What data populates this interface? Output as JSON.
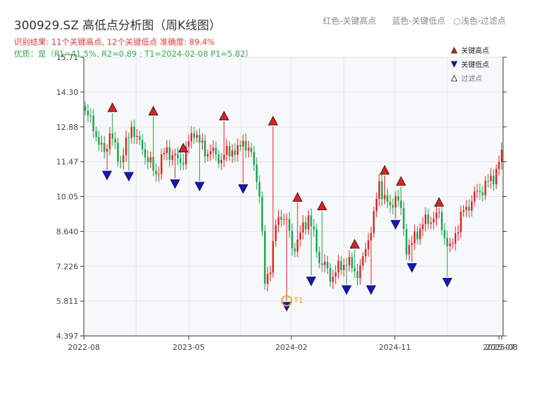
{
  "header": {
    "title": "300929.SZ 高低点分析图（周K线图）",
    "status_line": "识别结果: 11个关键高点, 12个关键低点  准确度: 89.4%",
    "quality_line": "优质：是（P1=41.5%, R2=0.89 ; T1=2024-02-08 P1=5.82）",
    "legend_top": [
      {
        "text": "红色-关键高点",
        "color": "#8a8a8a"
      },
      {
        "text": "蓝色-关键低点",
        "color": "#8a8a8a"
      },
      {
        "text": "○浅色-过滤点",
        "color": "#8a8a8a"
      }
    ]
  },
  "colors": {
    "up": "#e02020",
    "down": "#16a34a",
    "high_marker": "#e02020",
    "low_marker": "#1414d2",
    "t1_ring": "#f0a030",
    "plot_bg": "#f7f8fa",
    "grid": "#e1e4ea"
  },
  "chart_data": {
    "type": "candlestick",
    "title": "300929.SZ 高低点分析图（周K线图）",
    "x_ticks": [
      "2022-08",
      "2023-05",
      "2024-02",
      "2024-11",
      "2025-07",
      "2025-08"
    ],
    "y_ticks": [
      "4.397",
      "5.811",
      "7.226",
      "8.640",
      "10.05",
      "11.47",
      "12.88",
      "14.30",
      "15.71"
    ],
    "ylim": [
      4.397,
      15.71
    ],
    "x_range": [
      "2022-08",
      "2025-08"
    ],
    "grid": true,
    "legend_position": "top-right",
    "legend": [
      {
        "label": "关键高点",
        "marker": "triangle-up",
        "color": "#e02020"
      },
      {
        "label": "关键低点",
        "marker": "triangle-down",
        "color": "#1414d2"
      },
      {
        "label": "过滤点",
        "marker": "triangle-up-outline",
        "color": "#333333"
      }
    ],
    "anchors": [
      [
        0,
        13.4
      ],
      [
        3,
        13.0
      ],
      [
        5,
        12.1
      ],
      [
        7,
        11.9
      ],
      [
        9,
        12.6
      ],
      [
        11,
        12.0
      ],
      [
        13,
        11.5
      ],
      [
        15,
        12.1
      ],
      [
        17,
        13.0
      ],
      [
        19,
        12.3
      ],
      [
        21,
        12.1
      ],
      [
        23,
        11.5
      ],
      [
        26,
        11.0
      ],
      [
        28,
        11.5
      ],
      [
        30,
        12.0
      ],
      [
        32,
        11.7
      ],
      [
        34,
        11.5
      ],
      [
        36,
        11.6
      ],
      [
        38,
        12.2
      ],
      [
        40,
        12.8
      ],
      [
        42,
        12.2
      ],
      [
        44,
        11.9
      ],
      [
        46,
        11.9
      ],
      [
        48,
        11.7
      ],
      [
        50,
        11.6
      ],
      [
        52,
        11.8
      ],
      [
        54,
        12.0
      ],
      [
        56,
        11.8
      ],
      [
        58,
        12.4
      ],
      [
        60,
        11.9
      ],
      [
        62,
        11.4
      ],
      [
        64,
        10.2
      ],
      [
        66,
        6.5
      ],
      [
        68,
        7.3
      ],
      [
        70,
        8.8
      ],
      [
        72,
        9.4
      ],
      [
        74,
        9.0
      ],
      [
        76,
        8.0
      ],
      [
        78,
        8.2
      ],
      [
        80,
        8.8
      ],
      [
        82,
        9.3
      ],
      [
        84,
        8.4
      ],
      [
        86,
        7.5
      ],
      [
        88,
        7.2
      ],
      [
        90,
        6.8
      ],
      [
        92,
        7.0
      ],
      [
        94,
        7.2
      ],
      [
        96,
        7.5
      ],
      [
        98,
        7.1
      ],
      [
        100,
        7.0
      ],
      [
        102,
        7.4
      ],
      [
        104,
        8.4
      ],
      [
        106,
        9.2
      ],
      [
        108,
        10.6
      ],
      [
        110,
        10.0
      ],
      [
        112,
        9.5
      ],
      [
        114,
        10.2
      ],
      [
        116,
        9.4
      ],
      [
        118,
        8.0
      ],
      [
        120,
        8.1
      ],
      [
        122,
        8.6
      ],
      [
        124,
        9.0
      ],
      [
        126,
        9.0
      ],
      [
        128,
        9.3
      ],
      [
        130,
        9.2
      ],
      [
        132,
        8.5
      ],
      [
        134,
        7.8
      ],
      [
        136,
        8.6
      ],
      [
        138,
        9.2
      ],
      [
        140,
        9.6
      ],
      [
        142,
        9.9
      ],
      [
        144,
        10.2
      ],
      [
        146,
        10.4
      ],
      [
        148,
        10.6
      ],
      [
        150,
        10.9
      ],
      [
        152,
        11.4
      ],
      [
        153,
        11.7
      ]
    ],
    "key_highs": [
      {
        "i": 10,
        "value": 13.44
      },
      {
        "i": 25,
        "value": 13.3
      },
      {
        "i": 36,
        "value": 11.8
      },
      {
        "i": 51,
        "value": 13.1
      },
      {
        "i": 69,
        "value": 12.9
      },
      {
        "i": 78,
        "value": 9.8
      },
      {
        "i": 87,
        "value": 9.45
      },
      {
        "i": 99,
        "value": 7.9
      },
      {
        "i": 110,
        "value": 10.9
      },
      {
        "i": 116,
        "value": 10.45
      },
      {
        "i": 130,
        "value": 9.6
      }
    ],
    "key_lows": [
      {
        "i": 8,
        "value": 11.15
      },
      {
        "i": 16,
        "value": 11.1
      },
      {
        "i": 33,
        "value": 10.8
      },
      {
        "i": 42,
        "value": 10.7
      },
      {
        "i": 58,
        "value": 10.6
      },
      {
        "i": 74,
        "value": 5.82
      },
      {
        "i": 83,
        "value": 6.85
      },
      {
        "i": 96,
        "value": 6.5
      },
      {
        "i": 105,
        "value": 6.5
      },
      {
        "i": 114,
        "value": 9.15
      },
      {
        "i": 120,
        "value": 7.4
      },
      {
        "i": 133,
        "value": 6.8
      }
    ],
    "annotation": {
      "label": "T1",
      "i": 74,
      "value": 5.82
    }
  }
}
